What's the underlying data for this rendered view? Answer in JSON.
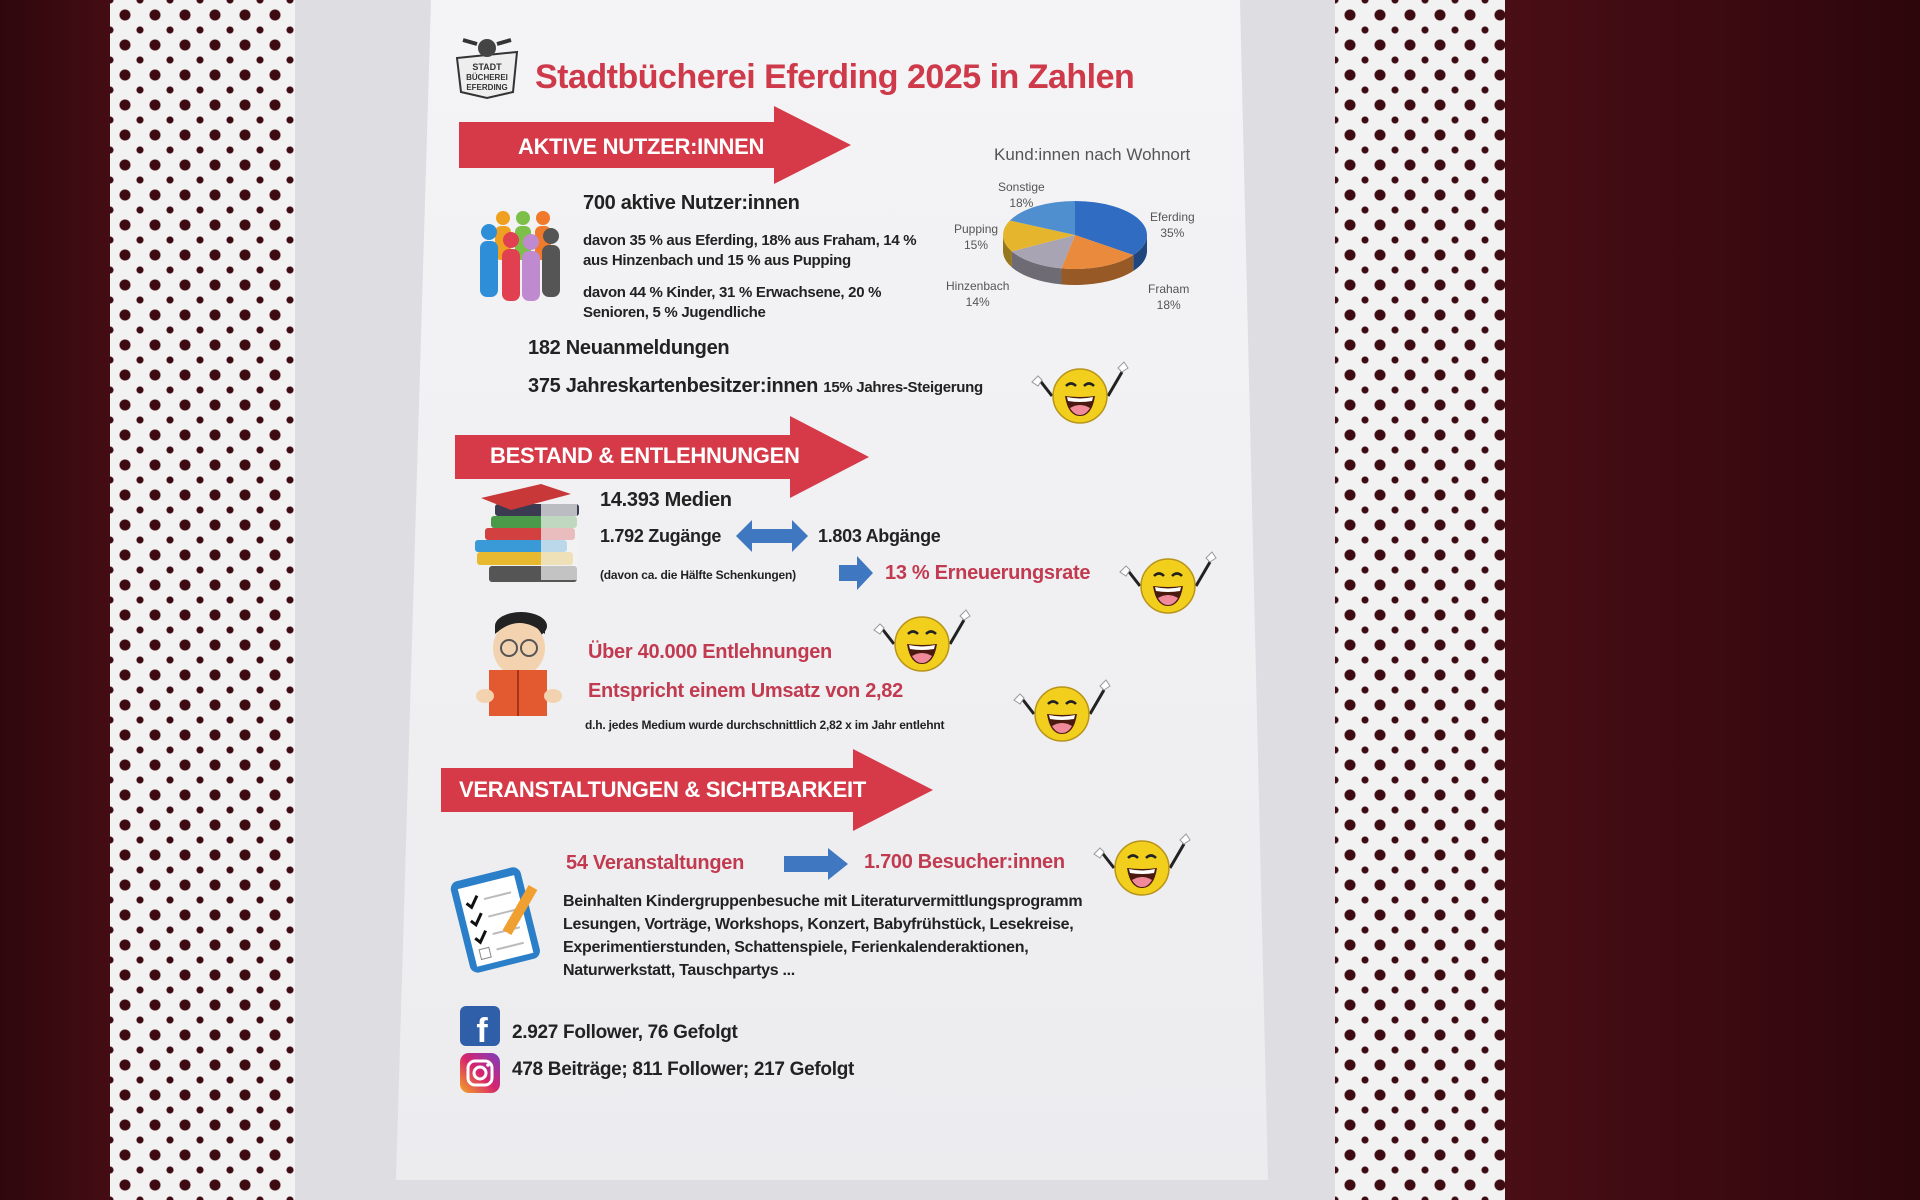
{
  "header": {
    "title": "Stadtbücherei Eferding 2025 in Zahlen",
    "logo_text": "STADT BÜCHEREI EFERDING"
  },
  "users": {
    "heading": "AKTIVE NUTZER:INNEN",
    "active": "700 aktive Nutzer:innen",
    "residence_line1": "davon 35 % aus Eferding, 18% aus Fraham, 14 %",
    "residence_line2": "aus Hinzenbach und 15 % aus Pupping",
    "age_line1": "davon 44 % Kinder, 31 % Erwachsene, 20 %",
    "age_line2": "Senioren, 5 % Jugendliche",
    "new_signups": "182 Neuanmeldungen",
    "annual_cards": "375 Jahreskartenbesitzer:innen",
    "annual_growth": "15% Jahres-Steigerung"
  },
  "chart_data": {
    "type": "pie",
    "title": "Kund:innen nach Wohnort",
    "categories": [
      "Eferding",
      "Fraham",
      "Hinzenbach",
      "Pupping",
      "Sonstige"
    ],
    "values": [
      35,
      18,
      14,
      15,
      18
    ],
    "unit": "%",
    "colors": [
      "#2f6cc2",
      "#e98a3c",
      "#a9a4b4",
      "#e6b52e",
      "#4f8fd0"
    ],
    "style": "3d"
  },
  "inventory": {
    "heading": "BESTAND & ENTLEHNUNGEN",
    "media": "14.393 Medien",
    "additions": "1.792 Zugänge",
    "removals": "1.803 Abgänge",
    "donations_note": "(davon ca. die Hälfte Schenkungen)",
    "renewal_rate": "13 % Erneuerungsrate",
    "loans": "Über 40.000 Entlehnungen",
    "turnover": "Entspricht einem Umsatz von 2,82",
    "turnover_note": "d.h. jedes Medium wurde durchschnittlich 2,82 x im Jahr entlehnt"
  },
  "events": {
    "heading": "VERANSTALTUNGEN & SICHTBARKEIT",
    "count": "54 Veranstaltungen",
    "visitors": "1.700 Besucher:innen",
    "lines": [
      "Beinhalten Kindergruppenbesuche mit Literaturvermittlungsprogramm",
      "Lesungen, Vorträge, Workshops, Konzert, Babyfrühstück, Lesekreise,",
      "Experimentierstunden, Schattenspiele, Ferienkalenderaktionen,",
      "Naturwerkstatt, Tauschpartys ..."
    ],
    "facebook": "2.927 Follower, 76 Gefolgt",
    "instagram": "478 Beiträge; 811 Follower; 217 Gefolgt"
  },
  "colors": {
    "accent_red": "#cf3a4b",
    "arrow_red": "#d63a48",
    "arrow_blue": "#3f78c0",
    "smiley_yellow": "#f2cf1c"
  }
}
